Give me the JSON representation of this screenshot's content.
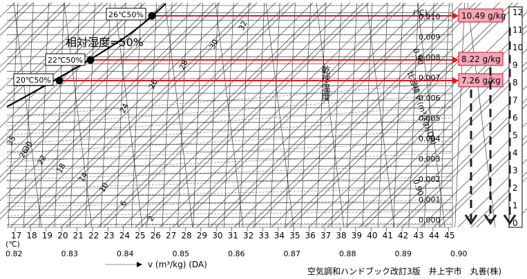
{
  "diagram": {
    "rh_label": "相対湿度=50%",
    "dry_bulb_vertical_label": "乾球温度",
    "dry_bulb_unit": "(℃)",
    "specific_volume_label": "比容積 v (m³/kg)(DA)",
    "points": [
      {
        "label": "26℃50%",
        "value_label": "10.49 g/kg"
      },
      {
        "label": "22℃50%",
        "value_label": "8.22 g/kg"
      },
      {
        "label": "20℃50%",
        "value_label": "7.26 g/kg"
      }
    ],
    "humidity_ticks": [
      "0.010",
      "0.009",
      "0.008",
      "0.007",
      "0.006",
      "0.005",
      "0.004",
      "0.003",
      "0.002",
      "0.001",
      "0.000"
    ],
    "right_scale": [
      "12",
      "11",
      "10",
      "9",
      "8",
      "7",
      "6",
      "5",
      "4",
      "3",
      "2",
      "1",
      "0"
    ],
    "bottom_temps": [
      "17",
      "18",
      "19",
      "20",
      "21",
      "22",
      "23",
      "24",
      "25",
      "26",
      "27",
      "28",
      "29",
      "30",
      "31",
      "32",
      "33",
      "34",
      "35",
      "36",
      "37",
      "38",
      "39",
      "40",
      "41",
      "42",
      "43",
      "44",
      "45"
    ],
    "bottom_temp_unit": "(℃)",
    "volume_ticks": [
      "0.82",
      "0.83",
      "0.84",
      "0.85",
      "0.86",
      "0.87",
      "0.88",
      "0.89",
      "0.90"
    ],
    "volume_axis_label": "v (m³/kg) (DA)",
    "wet_bulb_labels": [
      "35",
      "30",
      "26",
      "22",
      "18",
      "14",
      "10",
      "6",
      "2",
      "24",
      "26",
      "28",
      "30",
      "32"
    ],
    "volume_diag_labels": [
      "0.90",
      "0.90"
    ],
    "source": "空気調和ハンドブック改訂3版　井上宇市　丸善(株)"
  },
  "colors": {
    "accent": "#e8141e",
    "value_fill": "#f4a7b9",
    "ink": "#000000"
  }
}
